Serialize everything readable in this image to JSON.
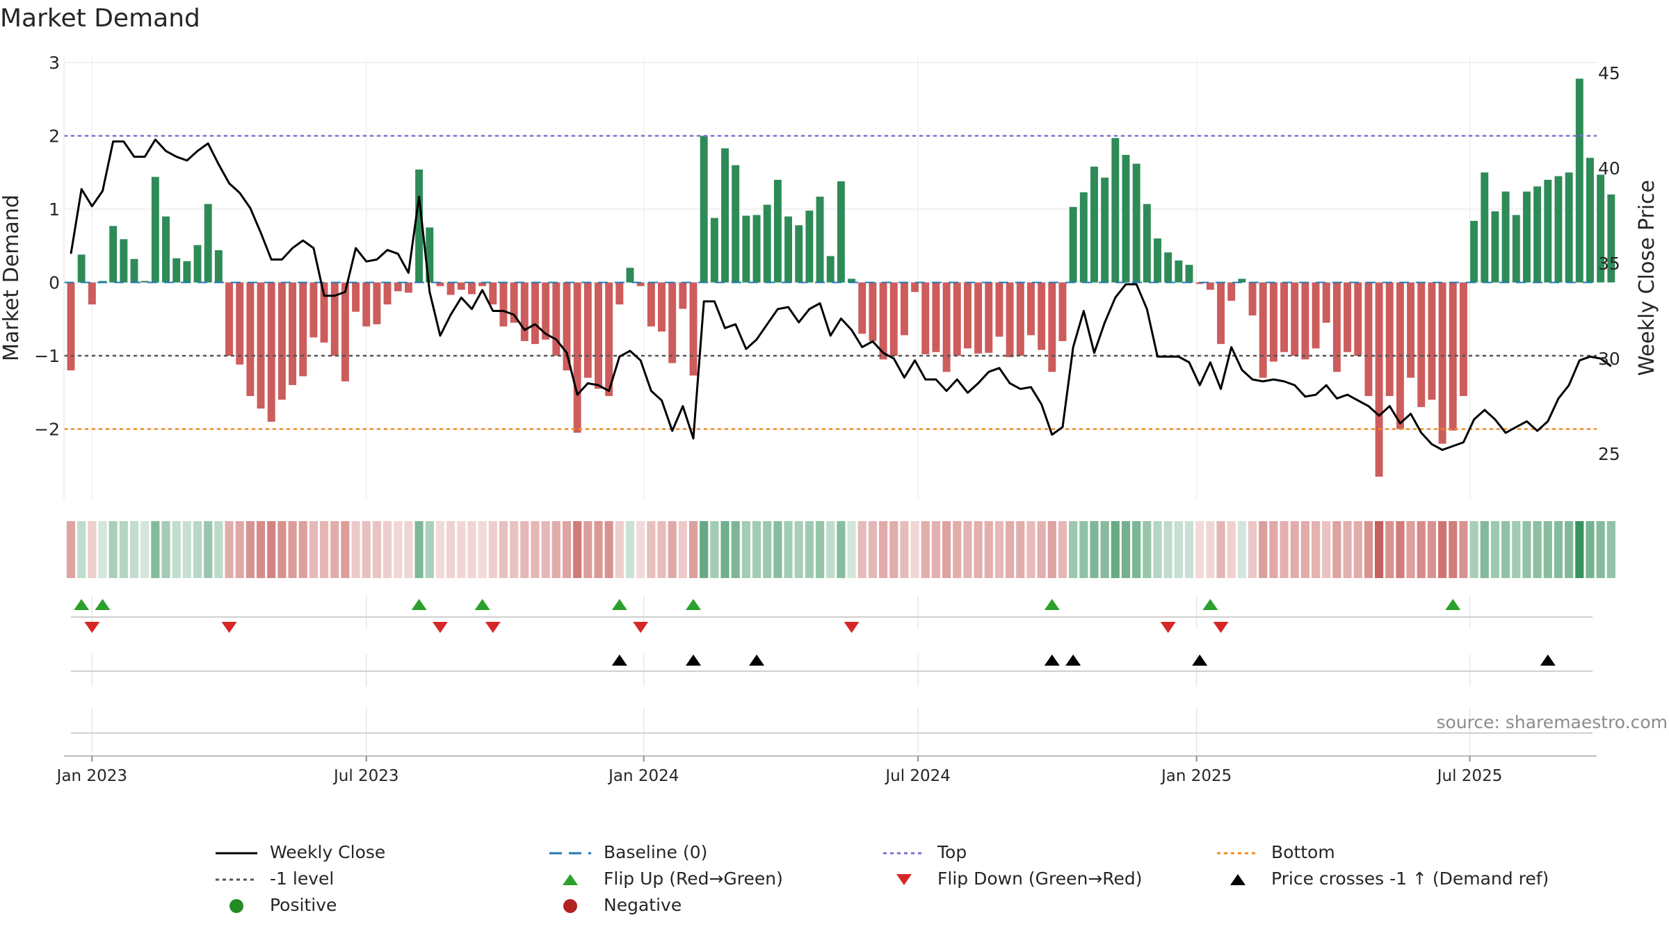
{
  "chart_data": {
    "type": "bar",
    "title": "Market Demand",
    "ylabel_left": "Market Demand",
    "ylabel_right": "Weekly Close Price",
    "left_ylim": [
      -2.95,
      3.0
    ],
    "right_ylim": [
      22.5,
      46.0
    ],
    "left_ticks": [
      {
        "value": 3,
        "label": "3"
      },
      {
        "value": 2,
        "label": "2"
      },
      {
        "value": 1,
        "label": "1"
      },
      {
        "value": 0,
        "label": "0"
      },
      {
        "value": -1,
        "label": "−1"
      },
      {
        "value": -2,
        "label": "−2"
      }
    ],
    "right_ticks": [
      {
        "value": 45,
        "label": "45"
      },
      {
        "value": 40,
        "label": "40"
      },
      {
        "value": 35,
        "label": "35"
      },
      {
        "value": 30,
        "label": "30"
      },
      {
        "value": 25,
        "label": "25"
      }
    ],
    "x_ticks": [
      {
        "week": 2,
        "label": "Jan 2023"
      },
      {
        "week": 28,
        "label": "Jul 2023"
      },
      {
        "week": 54.3,
        "label": "Jan 2024"
      },
      {
        "week": 80.3,
        "label": "Jul 2024"
      },
      {
        "week": 106.7,
        "label": "Jan 2025"
      },
      {
        "week": 132.6,
        "label": "Jul 2025"
      }
    ],
    "reference_lines": [
      {
        "name": "Top",
        "value": 2,
        "color": "#7b6fd6"
      },
      {
        "name": "-1 level",
        "value": -1,
        "color": "#555555"
      },
      {
        "name": "Bottom",
        "value": -2,
        "color": "#f08c1e"
      }
    ],
    "demand": [
      -1.2,
      0.38,
      -0.3,
      0.02,
      0.77,
      0.59,
      0.32,
      0.02,
      1.44,
      0.9,
      0.33,
      0.29,
      0.51,
      1.07,
      0.44,
      -1.0,
      -1.12,
      -1.55,
      -1.72,
      -1.9,
      -1.6,
      -1.4,
      -1.28,
      -0.75,
      -0.82,
      -1.0,
      -1.35,
      -0.4,
      -0.6,
      -0.57,
      -0.3,
      -0.12,
      -0.14,
      1.54,
      0.75,
      -0.05,
      -0.17,
      -0.1,
      -0.16,
      -0.05,
      -0.3,
      -0.6,
      -0.55,
      -0.8,
      -0.84,
      -0.78,
      -1.0,
      -1.2,
      -2.05,
      -1.3,
      -1.45,
      -1.55,
      -0.3,
      0.2,
      -0.05,
      -0.6,
      -0.67,
      -1.1,
      -0.36,
      -1.27,
      2.0,
      0.88,
      1.83,
      1.6,
      0.91,
      0.92,
      1.06,
      1.4,
      0.9,
      0.78,
      0.98,
      1.17,
      0.36,
      1.38,
      0.05,
      -0.7,
      -0.8,
      -1.05,
      -1.0,
      -0.72,
      -0.13,
      -0.98,
      -0.95,
      -1.22,
      -1.0,
      -0.9,
      -0.97,
      -0.96,
      -0.74,
      -1.02,
      -1.0,
      -0.72,
      -0.92,
      -1.22,
      -0.8,
      1.03,
      1.23,
      1.58,
      1.43,
      1.97,
      1.74,
      1.62,
      1.07,
      0.6,
      0.41,
      0.3,
      0.24,
      -0.02,
      -0.1,
      -0.84,
      -0.25,
      0.05,
      -0.45,
      -1.3,
      -1.08,
      -0.95,
      -1.0,
      -1.05,
      -0.9,
      -0.55,
      -1.22,
      -0.95,
      -1.0,
      -1.55,
      -2.65,
      -1.55,
      -2.0,
      -1.3,
      -1.7,
      -1.6,
      -2.2,
      -2.02,
      -1.55,
      0.84,
      1.5,
      0.97,
      1.24,
      0.92,
      1.24,
      1.31,
      1.4,
      1.45,
      1.5,
      2.78,
      1.7,
      1.47,
      1.2
    ],
    "close": [
      35.5,
      38.9,
      38.0,
      38.8,
      41.4,
      41.4,
      40.6,
      40.6,
      41.5,
      40.9,
      40.6,
      40.4,
      40.9,
      41.3,
      40.2,
      39.2,
      38.7,
      37.9,
      36.6,
      35.2,
      35.2,
      35.8,
      36.2,
      35.8,
      33.3,
      33.3,
      33.5,
      35.8,
      35.1,
      35.2,
      35.7,
      35.5,
      34.5,
      38.5,
      33.5,
      31.2,
      32.3,
      33.2,
      32.6,
      33.6,
      32.5,
      32.5,
      32.3,
      31.5,
      31.8,
      31.3,
      31.0,
      30.3,
      28.1,
      28.7,
      28.6,
      28.3,
      30.1,
      30.4,
      29.9,
      28.3,
      27.8,
      26.2,
      27.5,
      25.8,
      33.0,
      33.0,
      31.6,
      31.8,
      30.5,
      31.0,
      31.8,
      32.6,
      32.7,
      31.9,
      32.6,
      32.9,
      31.2,
      32.1,
      31.5,
      30.6,
      30.9,
      30.3,
      30.0,
      29.0,
      29.9,
      28.9,
      28.9,
      28.3,
      28.9,
      28.2,
      28.7,
      29.3,
      29.5,
      28.7,
      28.4,
      28.5,
      27.6,
      26.0,
      26.4,
      30.6,
      32.5,
      30.3,
      31.9,
      33.2,
      33.9,
      33.9,
      32.6,
      30.1,
      30.1,
      30.1,
      29.8,
      28.6,
      29.8,
      28.4,
      30.6,
      29.4,
      28.9,
      28.8,
      28.9,
      28.8,
      28.6,
      28.0,
      28.1,
      28.6,
      27.9,
      28.1,
      27.8,
      27.5,
      27.0,
      27.5,
      26.6,
      27.1,
      26.1,
      25.5,
      25.2,
      25.4,
      25.6,
      26.8,
      27.3,
      26.8,
      26.1,
      26.4,
      26.7,
      26.2,
      26.7,
      27.9,
      28.6,
      29.9,
      30.1,
      30.0,
      29.6
    ],
    "flip_up_weeks": [
      1,
      3,
      33,
      39,
      52,
      59,
      93,
      108,
      131
    ],
    "flip_down_weeks": [
      2,
      15,
      35,
      40,
      54,
      74,
      104,
      109
    ],
    "price_cross_weeks": [
      52,
      59,
      65,
      93,
      95,
      107,
      140
    ],
    "heat_scale": {
      "pos_color": "#2e8b57",
      "neg_color": "#c0504d",
      "bar_pos": "#2e8b57",
      "bar_neg": "#cd5c5c"
    },
    "annotation": "source: sharemaestro.com",
    "legend": [
      {
        "key": "weekly_close",
        "label": "Weekly Close"
      },
      {
        "key": "baseline",
        "label": "Baseline (0)"
      },
      {
        "key": "top",
        "label": "Top"
      },
      {
        "key": "bottom",
        "label": "Bottom"
      },
      {
        "key": "minus1",
        "label": "-1 level"
      },
      {
        "key": "flip_up",
        "label": "Flip Up (Red→Green)"
      },
      {
        "key": "flip_down",
        "label": "Flip Down (Green→Red)"
      },
      {
        "key": "price_cross",
        "label": "Price crosses -1 ↑ (Demand ref)"
      },
      {
        "key": "positive",
        "label": "Positive"
      },
      {
        "key": "negative",
        "label": "Negative"
      }
    ]
  }
}
